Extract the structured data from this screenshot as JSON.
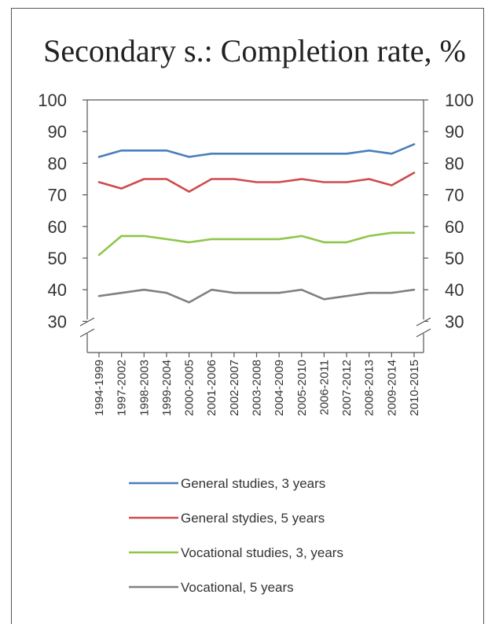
{
  "chart_data": {
    "type": "line",
    "title": "Secondary s.: Completion rate, %",
    "categories": [
      "1994-1999",
      "1997-2002",
      "1998-2003",
      "1999-2004",
      "2000-2005",
      "2001-2006",
      "2002-2007",
      "2003-2008",
      "2004-2009",
      "2005-2010",
      "2006-2011",
      "2007-2012",
      "2008-2013",
      "2009-2014",
      "2010-2015"
    ],
    "yticks": [
      "100",
      "90",
      "80",
      "70",
      "60",
      "50",
      "40",
      "30"
    ],
    "ylim": [
      30,
      100
    ],
    "axis_break": true,
    "grid": false,
    "legend_position": "bottom",
    "series": [
      {
        "name": "General studies, 3 years",
        "color": "#4a7ebb",
        "values": [
          82,
          84,
          84,
          84,
          82,
          83,
          83,
          83,
          83,
          83,
          83,
          83,
          84,
          83,
          86
        ]
      },
      {
        "name": "General stydies, 5 years",
        "color": "#cf4a4a",
        "values": [
          74,
          72,
          75,
          75,
          71,
          75,
          75,
          74,
          74,
          75,
          74,
          74,
          75,
          73,
          77
        ]
      },
      {
        "name": "Vocational studies, 3, years",
        "color": "#8fc64a",
        "values": [
          51,
          57,
          57,
          56,
          55,
          56,
          56,
          56,
          56,
          57,
          55,
          55,
          57,
          58,
          58
        ]
      },
      {
        "name": "Vocational, 5 years",
        "color": "#808080",
        "values": [
          38,
          39,
          40,
          39,
          36,
          40,
          39,
          39,
          39,
          40,
          37,
          38,
          39,
          39,
          40
        ]
      }
    ]
  }
}
